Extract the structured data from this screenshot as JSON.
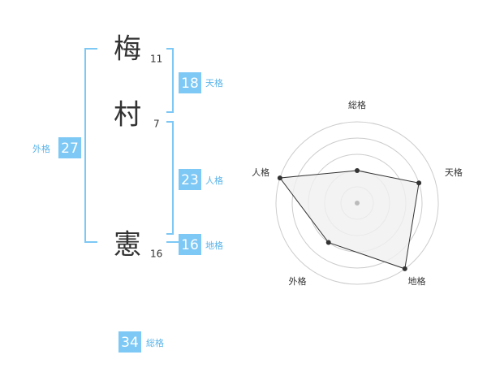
{
  "name": {
    "characters": [
      {
        "char": "梅",
        "strokes": 11
      },
      {
        "char": "村",
        "strokes": 7
      },
      {
        "char": "憲",
        "strokes": 16
      }
    ]
  },
  "kaku": {
    "tenkaku": {
      "value": 18,
      "label": "天格"
    },
    "jinkaku": {
      "value": 23,
      "label": "人格"
    },
    "chikaku": {
      "value": 16,
      "label": "地格"
    },
    "gaikaku": {
      "value": 27,
      "label": "外格"
    },
    "soukaku": {
      "value": 34,
      "label": "総格"
    }
  },
  "chart_data": {
    "type": "radar",
    "categories": [
      "総格",
      "天格",
      "地格",
      "外格",
      "人格"
    ],
    "values": [
      2,
      4,
      5,
      3,
      5
    ],
    "rlim": [
      0,
      5
    ],
    "rticks": [
      1,
      2,
      3,
      4,
      5
    ],
    "color": "#333333",
    "fill": "#f0f0f0"
  }
}
